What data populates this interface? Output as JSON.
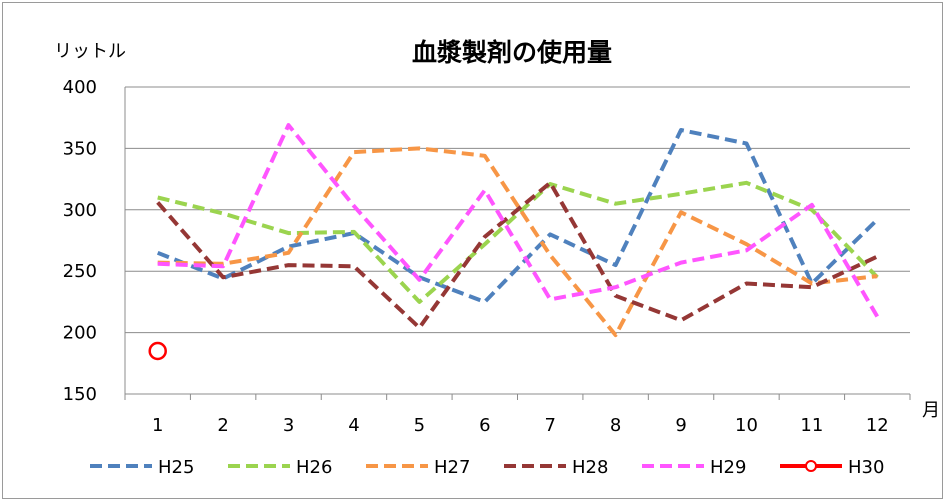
{
  "chart_data": {
    "type": "line",
    "title": "血漿製剤の使用量",
    "ylabel": "リットル",
    "xlabel": "月",
    "ylim": [
      150,
      400
    ],
    "yticks": [
      150,
      200,
      250,
      300,
      350,
      400
    ],
    "categories": [
      "1",
      "2",
      "3",
      "4",
      "5",
      "6",
      "7",
      "8",
      "9",
      "10",
      "11",
      "12"
    ],
    "grid": true,
    "legend": "bottom",
    "series": [
      {
        "name": "H25",
        "color": "#4f81bd",
        "dashed": true,
        "values": [
          265,
          244,
          270,
          281,
          245,
          225,
          280,
          255,
          365,
          354,
          240,
          292
        ]
      },
      {
        "name": "H26",
        "color": "#9bd44f",
        "dashed": true,
        "values": [
          310,
          297,
          281,
          282,
          225,
          272,
          321,
          305,
          313,
          322,
          300,
          245
        ]
      },
      {
        "name": "H27",
        "color": "#f79646",
        "dashed": true,
        "values": [
          257,
          256,
          265,
          347,
          350,
          344,
          263,
          198,
          298,
          272,
          240,
          246
        ]
      },
      {
        "name": "H28",
        "color": "#953735",
        "dashed": true,
        "values": [
          306,
          245,
          255,
          254,
          204,
          278,
          322,
          230,
          210,
          240,
          237,
          262
        ]
      },
      {
        "name": "H29",
        "color": "#ff55ff",
        "dashed": true,
        "values": [
          256,
          254,
          369,
          303,
          243,
          316,
          227,
          237,
          257,
          267,
          304,
          213
        ]
      },
      {
        "name": "H30",
        "color": "#ff0000",
        "dashed": false,
        "marker": "circle",
        "values": [
          185,
          null,
          null,
          null,
          null,
          null,
          null,
          null,
          null,
          null,
          null,
          null
        ]
      }
    ]
  }
}
